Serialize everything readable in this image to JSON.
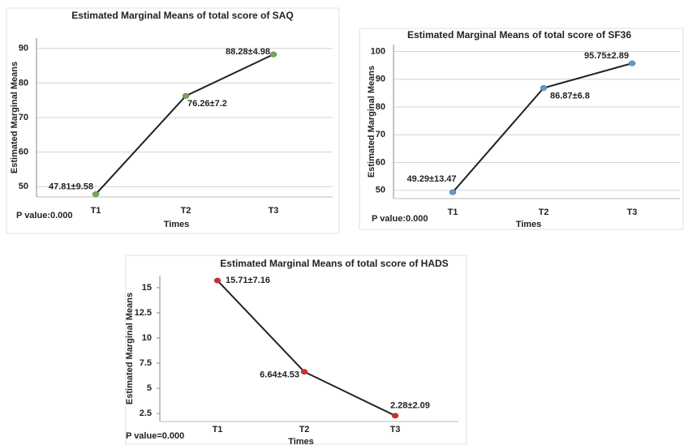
{
  "chart_data": [
    {
      "type": "line",
      "title": "Estimated Marginal Means of total score of SAQ",
      "x_label": "Times",
      "y_label": "Estimated Marginal Means",
      "annotation": "P value:0.000",
      "categories": [
        "T1",
        "T2",
        "T3"
      ],
      "values": [
        47.81,
        76.26,
        88.28
      ],
      "value_labels": [
        "47.81±9.58",
        "76.26±7.2",
        "88.28±4.98"
      ],
      "color": "#70ad47",
      "ylim": [
        47,
        93
      ],
      "yticks": [
        50,
        60,
        70,
        80,
        90
      ],
      "grid": true
    },
    {
      "type": "line",
      "title": "Estimated Marginal Means of total score of SF36",
      "x_label": "Times",
      "y_label": "Estimated Marginal Means",
      "annotation": "P value:0.000",
      "categories": [
        "T1",
        "T2",
        "T3"
      ],
      "values": [
        49.29,
        86.87,
        95.75
      ],
      "value_labels": [
        "49.29±13.47",
        "86.87±6.8",
        "95.75±2.89"
      ],
      "color": "#5b9bd5",
      "ylim": [
        47,
        102.5
      ],
      "yticks": [
        50,
        60,
        70,
        80,
        90,
        100
      ],
      "grid": true
    },
    {
      "type": "line",
      "title": "Estimated Marginal Means of total score of HADS",
      "x_label": "Times",
      "y_label": "Estimated Marginal Means",
      "annotation": "P value=0.000",
      "categories": [
        "T1",
        "T2",
        "T3"
      ],
      "values": [
        15.71,
        6.64,
        2.28
      ],
      "value_labels": [
        "15.71±7.16",
        "6.64±4.53",
        "2.28±2.09"
      ],
      "color": "#e0262a",
      "ylim": [
        1.7,
        16.2
      ],
      "yticks": [
        2.5,
        5,
        7.5,
        10,
        12.5,
        15
      ],
      "grid": false
    }
  ]
}
